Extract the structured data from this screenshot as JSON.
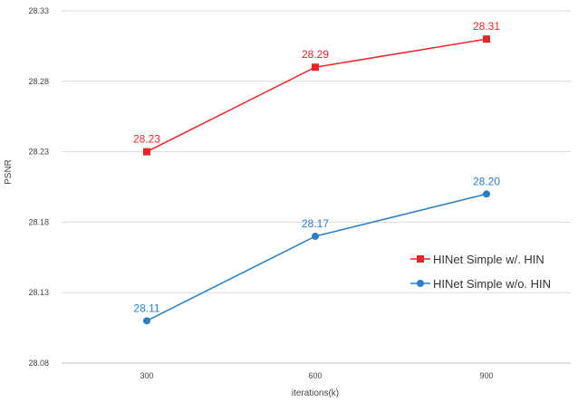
{
  "chart_data": {
    "type": "line",
    "title": "",
    "xlabel": "iterations(k)",
    "ylabel": "PSNR",
    "categories": [
      "300",
      "600",
      "900"
    ],
    "ylim": [
      28.08,
      28.33
    ],
    "yticks": [
      "28.08",
      "28.13",
      "28.18",
      "28.23",
      "28.28",
      "28.33"
    ],
    "grid": true,
    "legend_position": "right",
    "series": [
      {
        "name": "HINet Simple w/. HIN",
        "values": [
          28.23,
          28.29,
          28.31
        ],
        "labels": [
          "28.23",
          "28.29",
          "28.31"
        ],
        "color": "#e8262a",
        "marker": "square"
      },
      {
        "name": "HINet Simple w/o. HIN",
        "values": [
          28.11,
          28.17,
          28.2
        ],
        "labels": [
          "28.11",
          "28.17",
          "28.20"
        ],
        "color": "#2a7fc4",
        "marker": "circle"
      }
    ]
  }
}
